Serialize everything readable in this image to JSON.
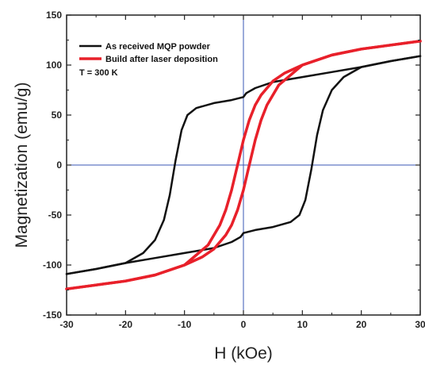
{
  "chart_data": {
    "type": "line",
    "xlabel": "H (kOe)",
    "ylabel": "Magnetization (emu/g)",
    "xlim": [
      -30,
      30
    ],
    "ylim": [
      -150,
      150
    ],
    "xticks": [
      -30,
      -20,
      -10,
      0,
      10,
      20,
      30
    ],
    "yticks": [
      -150,
      -100,
      -50,
      0,
      50,
      100,
      150
    ],
    "grid": false,
    "zero_lines": true,
    "legend_placement": "top-left",
    "annotation": "T = 300 K",
    "colors": {
      "series_1": "#111111",
      "series_2": "#e8202a",
      "zero_lines": "#3a57b5"
    },
    "series": [
      {
        "name": "As received MQP powder",
        "descending_branch": {
          "x": [
            30,
            25,
            20,
            15,
            10,
            5,
            2,
            0.5,
            0,
            -2,
            -5,
            -8,
            -9.5,
            -10.5,
            -11.5,
            -12.5,
            -13.5,
            -15,
            -17,
            -20,
            -25,
            -30
          ],
          "y": [
            109,
            104,
            98,
            93,
            88,
            83,
            77,
            72,
            68,
            65,
            62,
            57,
            50,
            35,
            5,
            -30,
            -55,
            -75,
            -88,
            -98,
            -104,
            -109
          ]
        },
        "ascending_branch": {
          "x": [
            -30,
            -25,
            -20,
            -15,
            -10,
            -5,
            -2,
            -0.5,
            0,
            2,
            5,
            8,
            9.5,
            10.5,
            11.5,
            12.5,
            13.5,
            15,
            17,
            20,
            25,
            30
          ],
          "y": [
            -109,
            -104,
            -98,
            -93,
            -88,
            -83,
            -77,
            -72,
            -68,
            -65,
            -62,
            -57,
            -50,
            -35,
            -5,
            30,
            55,
            75,
            88,
            98,
            104,
            109
          ]
        }
      },
      {
        "name": "Build after laser deposition",
        "descending_branch": {
          "x": [
            30,
            25,
            20,
            15,
            10,
            7,
            5,
            3,
            2,
            1,
            0,
            -0.8,
            -2,
            -3,
            -4,
            -6,
            -10,
            -15,
            -20,
            -25,
            -30
          ],
          "y": [
            124,
            120,
            116,
            110,
            100,
            92,
            84,
            70,
            60,
            45,
            25,
            5,
            -25,
            -45,
            -60,
            -80,
            -100,
            -110,
            -116,
            -120,
            -124
          ]
        },
        "ascending_branch": {
          "x": [
            -30,
            -25,
            -20,
            -15,
            -10,
            -7,
            -5,
            -3,
            -2,
            -1,
            0,
            0.8,
            2,
            3,
            4,
            6,
            10,
            15,
            20,
            25,
            30
          ],
          "y": [
            -124,
            -120,
            -116,
            -110,
            -100,
            -92,
            -84,
            -70,
            -60,
            -45,
            -25,
            -5,
            25,
            45,
            60,
            80,
            100,
            110,
            116,
            120,
            124
          ]
        }
      }
    ]
  }
}
